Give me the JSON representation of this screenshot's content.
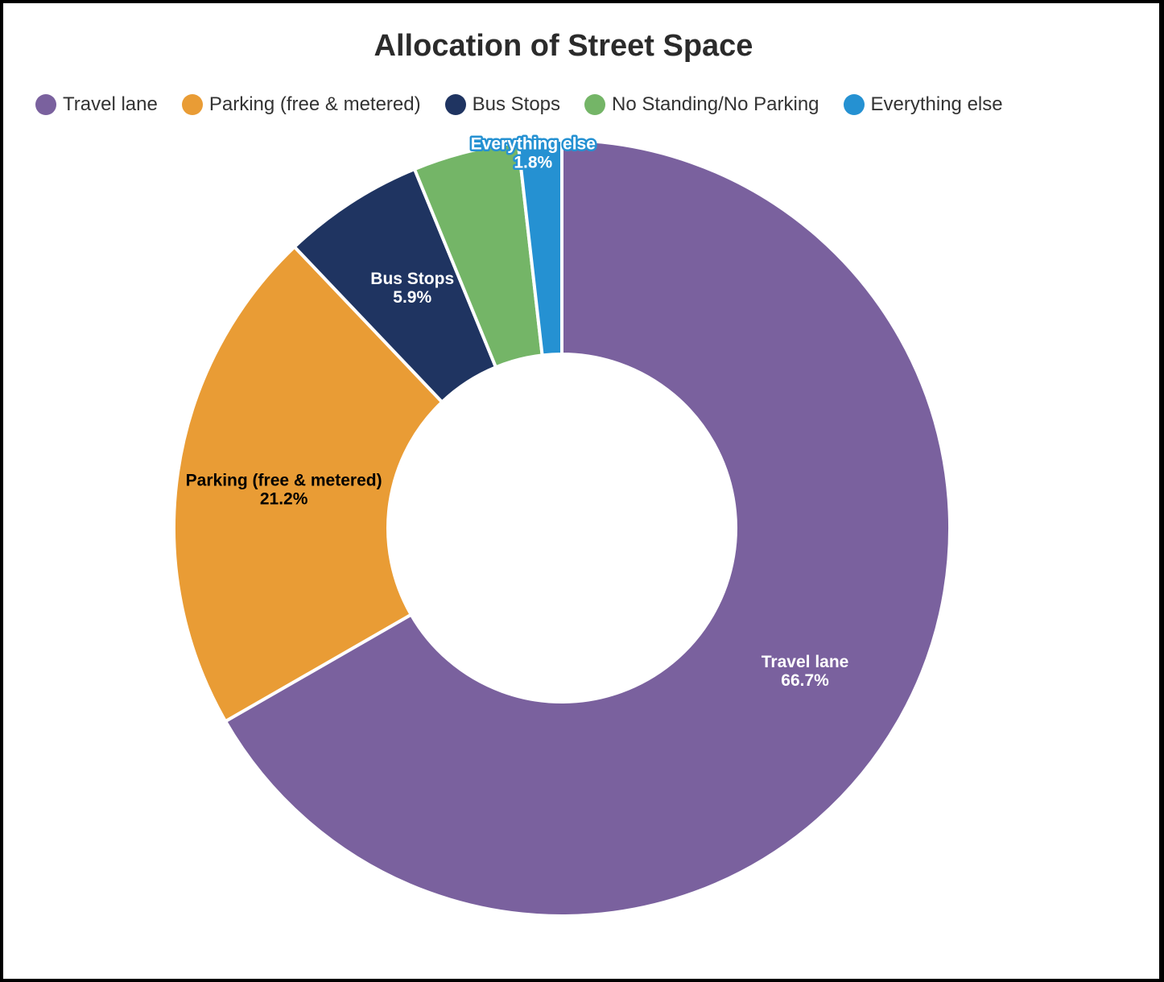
{
  "chart_data": {
    "type": "pie",
    "title": "Allocation of Street Space",
    "legend_position": "top-left",
    "donut": true,
    "slices": [
      {
        "name": "Travel lane",
        "value": 66.7,
        "color": "#7a619e",
        "label": "Travel lane",
        "value_label": "66.7%",
        "label_color": "#ffffff"
      },
      {
        "name": "Parking (free & metered)",
        "value": 21.2,
        "color": "#e99c35",
        "label": "Parking (free & metered)",
        "value_label": "21.2%",
        "label_color": "#000000"
      },
      {
        "name": "Bus Stops",
        "value": 5.9,
        "color": "#1f3461",
        "label": "Bus Stops",
        "value_label": "5.9%",
        "label_color": "#ffffff"
      },
      {
        "name": "No Standing/No Parking",
        "value": 4.4,
        "color": "#74b567",
        "label": "",
        "value_label": "",
        "label_color": "#ffffff"
      },
      {
        "name": "Everything else",
        "value": 1.8,
        "color": "#2591d2",
        "label": "Everything else",
        "value_label": "1.8%",
        "label_color": "#ffffff"
      }
    ]
  }
}
